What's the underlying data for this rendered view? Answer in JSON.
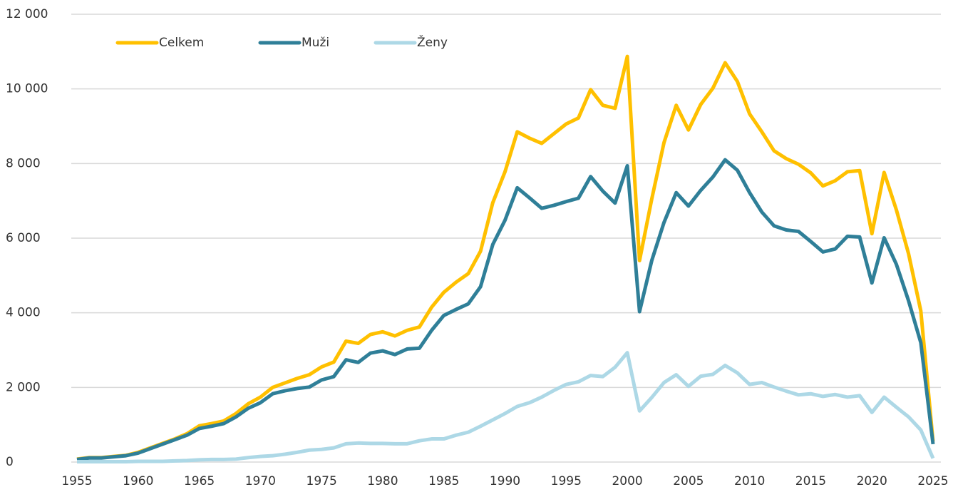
{
  "chart_data": {
    "type": "line",
    "x": [
      1955,
      1956,
      1957,
      1958,
      1959,
      1960,
      1961,
      1962,
      1963,
      1964,
      1965,
      1966,
      1967,
      1968,
      1969,
      1970,
      1971,
      1972,
      1973,
      1974,
      1975,
      1976,
      1977,
      1978,
      1979,
      1980,
      1981,
      1982,
      1983,
      1984,
      1985,
      1986,
      1987,
      1988,
      1989,
      1990,
      1991,
      1992,
      1993,
      1994,
      1995,
      1996,
      1997,
      1998,
      1999,
      2000,
      2001,
      2002,
      2003,
      2004,
      2005,
      2006,
      2007,
      2008,
      2009,
      2010,
      2011,
      2012,
      2013,
      2014,
      2015,
      2016,
      2017,
      2018,
      2019,
      2020,
      2021,
      2022,
      2023,
      2024,
      2025
    ],
    "series": [
      {
        "name": "Celkem",
        "color": "#ffc000",
        "values": [
          80,
          120,
          120,
          150,
          180,
          260,
          380,
          500,
          620,
          760,
          970,
          1030,
          1100,
          1300,
          1560,
          1740,
          2000,
          2120,
          2240,
          2340,
          2550,
          2680,
          3240,
          3180,
          3420,
          3490,
          3380,
          3530,
          3620,
          4150,
          4550,
          4820,
          5050,
          5650,
          6950,
          7780,
          8850,
          8680,
          8540,
          8800,
          9060,
          9220,
          9980,
          9560,
          9480,
          10870,
          5400,
          7050,
          8560,
          9560,
          8900,
          9580,
          10020,
          10700,
          10200,
          9330,
          8850,
          8340,
          8130,
          7980,
          7750,
          7400,
          7540,
          7780,
          7810,
          6120,
          7760,
          6760,
          5580,
          4050,
          550
        ]
      },
      {
        "name": "Muži",
        "color": "#2f7f98",
        "values": [
          70,
          110,
          110,
          140,
          170,
          240,
          360,
          480,
          600,
          720,
          900,
          960,
          1030,
          1210,
          1440,
          1590,
          1830,
          1910,
          1970,
          2010,
          2200,
          2290,
          2740,
          2670,
          2920,
          2980,
          2880,
          3030,
          3050,
          3530,
          3930,
          4090,
          4240,
          4700,
          5830,
          6480,
          7350,
          7080,
          6800,
          6880,
          6980,
          7070,
          7650,
          7260,
          6940,
          7940,
          4030,
          5400,
          6420,
          7220,
          6860,
          7280,
          7640,
          8100,
          7820,
          7220,
          6700,
          6330,
          6220,
          6180,
          5910,
          5630,
          5710,
          6050,
          6030,
          4800,
          6010,
          5300,
          4320,
          3200,
          480
        ]
      },
      {
        "name": "Ženy",
        "color": "#add8e6",
        "values": [
          10,
          10,
          10,
          10,
          10,
          20,
          20,
          20,
          30,
          40,
          60,
          70,
          70,
          80,
          120,
          150,
          170,
          210,
          260,
          320,
          340,
          380,
          490,
          510,
          500,
          500,
          490,
          490,
          570,
          620,
          620,
          720,
          800,
          960,
          1130,
          1300,
          1490,
          1590,
          1740,
          1920,
          2080,
          2150,
          2320,
          2290,
          2540,
          2930,
          1370,
          1730,
          2130,
          2340,
          2030,
          2300,
          2350,
          2590,
          2390,
          2080,
          2130,
          2010,
          1900,
          1800,
          1830,
          1760,
          1810,
          1740,
          1780,
          1330,
          1740,
          1470,
          1210,
          860,
          100
        ]
      }
    ],
    "xlim": [
      1955,
      2025
    ],
    "xticks": [
      1955,
      1960,
      1965,
      1970,
      1975,
      1980,
      1985,
      1990,
      1995,
      2000,
      2005,
      2010,
      2015,
      2020,
      2025
    ],
    "ylim": [
      0,
      12000
    ],
    "yticks": [
      0,
      {
        "value": 2000,
        "label": "2 000"
      },
      {
        "value": 4000,
        "label": "4 000"
      },
      {
        "value": 6000,
        "label": "6 000"
      },
      {
        "value": 8000,
        "label": "8 000"
      },
      {
        "value": 10000,
        "label": "10 000"
      },
      {
        "value": 12000,
        "label": "12 000"
      }
    ],
    "grid": true,
    "legend": "top-left"
  }
}
